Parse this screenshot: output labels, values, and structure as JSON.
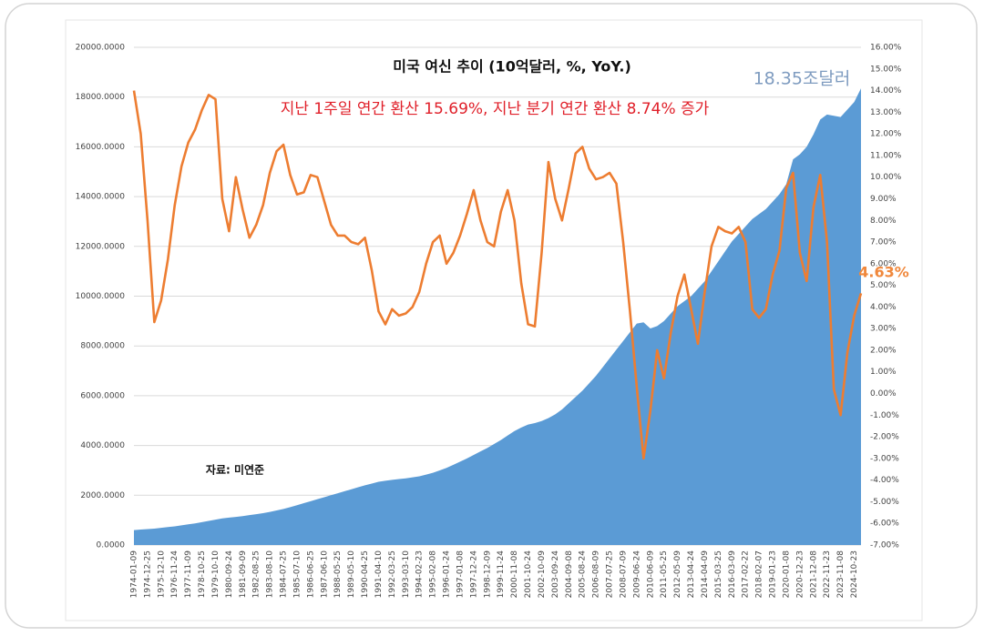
{
  "chart_data": {
    "type": "area-line",
    "title": "미국 여신 추이 (10억달러, %, YoY.)",
    "subtitle": "지난 1주일 연간 환산 15.69%, 지난 분기 연간 환산 8.74% 증가",
    "annotations": [
      "18.35조달러",
      "4.63%",
      "자료: 미연준"
    ],
    "categories": [
      "1974-01-09",
      null,
      "1974-12-25",
      null,
      "1975-12-10",
      null,
      "1976-11-24",
      null,
      "1977-11-09",
      null,
      "1978-10-25",
      null,
      "1979-10-10",
      null,
      "1980-09-24",
      null,
      "1981-09-09",
      null,
      "1982-08-25",
      null,
      "1983-08-10",
      null,
      "1984-07-25",
      null,
      "1985-07-10",
      null,
      "1986-06-25",
      null,
      "1987-06-10",
      null,
      "1988-05-25",
      null,
      "1989-05-10",
      null,
      "1990-04-25",
      null,
      "1991-04-10",
      null,
      "1992-03-25",
      null,
      "1993-03-10",
      null,
      "1994-02-23",
      null,
      "1995-02-08",
      null,
      "1996-01-24",
      null,
      "1997-01-08",
      null,
      "1997-12-24",
      null,
      "1998-12-09",
      null,
      "1999-11-24",
      null,
      "2000-11-08",
      null,
      "2001-10-24",
      null,
      "2002-10-09",
      null,
      "2003-09-24",
      null,
      "2004-09-08",
      null,
      "2005-08-24",
      null,
      "2006-08-09",
      null,
      "2007-07-25",
      null,
      "2008-07-09",
      null,
      "2009-06-24",
      null,
      "2010-06-09",
      null,
      "2011-05-25",
      null,
      "2012-05-09",
      null,
      "2013-04-24",
      null,
      "2014-04-09",
      null,
      "2015-03-25",
      null,
      "2016-03-09",
      null,
      "2017-02-22",
      null,
      "2018-02-07",
      null,
      "2019-01-23",
      null,
      "2020-01-08",
      null,
      "2020-12-23",
      null,
      "2021-12-08",
      null,
      "2022-11-23",
      null,
      "2023-11-08",
      null,
      "2024-10-23",
      null
    ],
    "series": [
      {
        "type": "area",
        "axis": "y",
        "color": "#5b9bd5",
        "values": [
          600,
          620,
          640,
          660,
          690,
          720,
          750,
          790,
          830,
          870,
          920,
          970,
          1020,
          1070,
          1100,
          1130,
          1160,
          1200,
          1240,
          1280,
          1330,
          1390,
          1450,
          1520,
          1600,
          1680,
          1760,
          1840,
          1920,
          2000,
          2080,
          2160,
          2240,
          2320,
          2400,
          2470,
          2540,
          2580,
          2620,
          2650,
          2680,
          2720,
          2760,
          2830,
          2900,
          3000,
          3100,
          3220,
          3350,
          3480,
          3620,
          3760,
          3900,
          4060,
          4220,
          4400,
          4580,
          4720,
          4840,
          4900,
          4980,
          5100,
          5250,
          5450,
          5700,
          5950,
          6200,
          6500,
          6800,
          7150,
          7500,
          7850,
          8200,
          8550,
          8900,
          8950,
          8700,
          8800,
          9000,
          9300,
          9600,
          9800,
          10000,
          10300,
          10600,
          11000,
          11400,
          11800,
          12200,
          12500,
          12800,
          13100,
          13300,
          13500,
          13800,
          14100,
          14500,
          15500,
          15700,
          16000,
          16500,
          17100,
          17300,
          17250,
          17200,
          17500,
          17800,
          18350
        ]
      },
      {
        "type": "line",
        "axis": "y2",
        "color": "#ed7d31",
        "values": [
          14.0,
          12.0,
          8.0,
          3.3,
          4.3,
          6.2,
          8.7,
          10.5,
          11.6,
          12.2,
          13.1,
          13.8,
          13.6,
          9.0,
          7.5,
          10.0,
          8.5,
          7.2,
          7.8,
          8.7,
          10.2,
          11.2,
          11.5,
          10.1,
          9.2,
          9.3,
          10.1,
          10.0,
          8.9,
          7.8,
          7.3,
          7.3,
          7.0,
          6.9,
          7.2,
          5.7,
          3.8,
          3.2,
          3.9,
          3.6,
          3.7,
          4.0,
          4.7,
          6.0,
          7.0,
          7.3,
          6.0,
          6.5,
          7.3,
          8.3,
          9.4,
          8.0,
          7.0,
          6.8,
          8.4,
          9.4,
          8.0,
          5.1,
          3.2,
          3.1,
          6.5,
          10.7,
          9.0,
          8.0,
          9.5,
          11.1,
          11.4,
          10.4,
          9.9,
          10.0,
          10.2,
          9.7,
          7.0,
          3.8,
          0.3,
          -3.0,
          -0.8,
          2.0,
          0.7,
          2.8,
          4.5,
          5.5,
          3.9,
          2.3,
          4.7,
          6.8,
          7.7,
          7.5,
          7.4,
          7.7,
          7.0,
          3.9,
          3.5,
          3.9,
          5.5,
          6.6,
          9.5,
          10.2,
          6.5,
          5.2,
          8.6,
          10.1,
          7.0,
          0.2,
          -1.0,
          1.9,
          3.6,
          4.63
        ]
      }
    ],
    "ylim": [
      0,
      20000
    ],
    "yticks": [
      {
        "value": 0,
        "label": "0.0000"
      },
      {
        "value": 2000,
        "label": "2000.0000"
      },
      {
        "value": 4000,
        "label": "4000.0000"
      },
      {
        "value": 6000,
        "label": "6000.0000"
      },
      {
        "value": 8000,
        "label": "8000.0000"
      },
      {
        "value": 10000,
        "label": "10000.0000"
      },
      {
        "value": 12000,
        "label": "12000.0000"
      },
      {
        "value": 14000,
        "label": "14000.0000"
      },
      {
        "value": 16000,
        "label": "16000.0000"
      },
      {
        "value": 18000,
        "label": "18000.0000"
      },
      {
        "value": 20000,
        "label": "20000.0000"
      }
    ],
    "y2lim": [
      -7,
      16
    ],
    "y2ticks": [
      {
        "value": -7,
        "label": "-7.00%"
      },
      {
        "value": -6,
        "label": "-6.00%"
      },
      {
        "value": -5,
        "label": "-5.00%"
      },
      {
        "value": -4,
        "label": "-4.00%"
      },
      {
        "value": -3,
        "label": "-3.00%"
      },
      {
        "value": -2,
        "label": "-2.00%"
      },
      {
        "value": -1,
        "label": "-1.00%"
      },
      {
        "value": 0,
        "label": "0.00%"
      },
      {
        "value": 1,
        "label": "1.00%"
      },
      {
        "value": 2,
        "label": "2.00%"
      },
      {
        "value": 3,
        "label": "3.00%"
      },
      {
        "value": 4,
        "label": "4.00%"
      },
      {
        "value": 5,
        "label": "5.00%"
      },
      {
        "value": 6,
        "label": "6.00%"
      },
      {
        "value": 7,
        "label": "7.00%"
      },
      {
        "value": 8,
        "label": "8.00%"
      },
      {
        "value": 9,
        "label": "9.00%"
      },
      {
        "value": 10,
        "label": "10.00%"
      },
      {
        "value": 11,
        "label": "11.00%"
      },
      {
        "value": 12,
        "label": "12.00%"
      },
      {
        "value": 13,
        "label": "13.00%"
      },
      {
        "value": 14,
        "label": "14.00%"
      },
      {
        "value": 15,
        "label": "15.00%"
      },
      {
        "value": 16,
        "label": "16.00%"
      }
    ],
    "grid": true
  }
}
